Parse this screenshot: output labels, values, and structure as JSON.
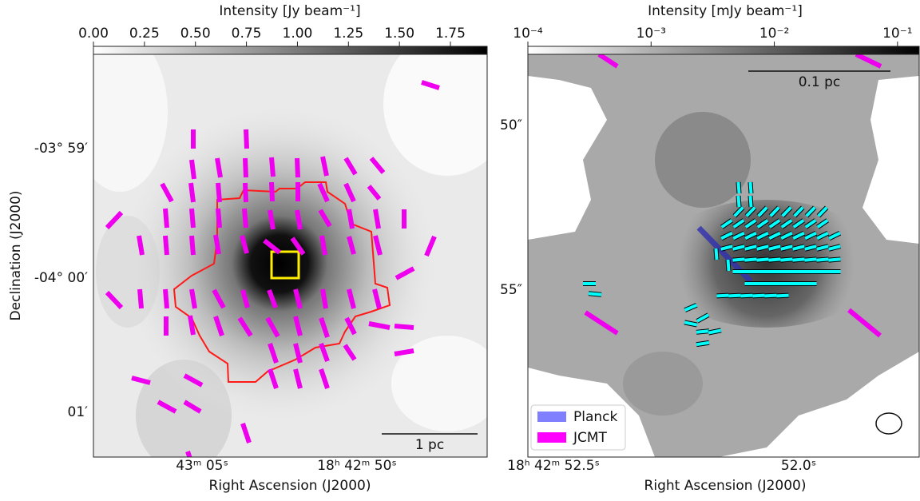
{
  "panels": [
    {
      "colorbar": {
        "label": "Intensity [Jy beam⁻¹]",
        "clim": [
          0,
          1.93
        ],
        "log": false,
        "ticks": [
          {
            "value": 0,
            "label": "0.00"
          },
          0.25,
          {
            "value": 0.5,
            "label": "0.50"
          },
          0.75,
          {
            "value": 1,
            "label": "1.00"
          },
          1.25,
          {
            "value": 1.5,
            "label": "1.50"
          },
          1.75
        ]
      },
      "xlabel": "Right Ascension (J2000)",
      "ylabel": "Declination (J2000)",
      "xticklabels": [
        "43ᵐ 05ˢ",
        "18ʰ 42ᵐ 50ˢ"
      ],
      "yticklabels": [
        "-03° 59′",
        "-04° 00′",
        "01′"
      ],
      "scalebar": "1 pc"
    },
    {
      "colorbar": {
        "label": "Intensity [mJy beam⁻¹]",
        "clim": [
          0.0001,
          0.15
        ],
        "log": true,
        "ticks": [
          {
            "value": 0.0001,
            "label": "10⁻⁴"
          },
          {
            "value": 0.001,
            "label": "10⁻³"
          },
          {
            "value": 0.01,
            "label": "10⁻²"
          },
          {
            "value": 0.1,
            "label": "10⁻¹"
          }
        ]
      },
      "xlabel": "Right Ascension (J2000)",
      "xticklabels": [
        "18ʰ 42ᵐ 52.5ˢ",
        "52.0ˢ"
      ],
      "yticklabels": [
        "50″",
        "55″"
      ],
      "scalebar": "0.1 pc",
      "legend": [
        {
          "name": "Planck",
          "color": "#8080ff"
        },
        {
          "name": "JCMT",
          "color": "#ff00ff"
        }
      ]
    }
  ]
}
